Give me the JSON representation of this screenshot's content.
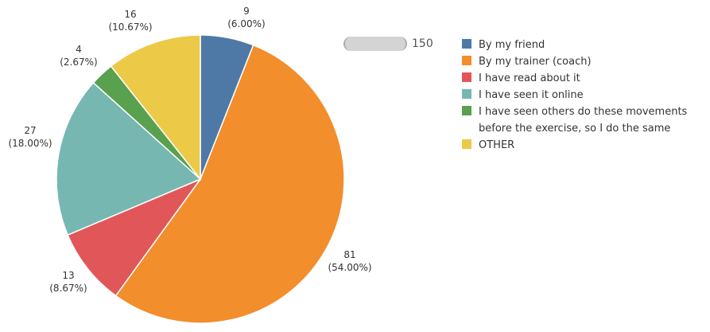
{
  "chart_data": {
    "type": "pie",
    "title": "",
    "categories": [
      "By my friend",
      "By my trainer (coach)",
      "I have read about it",
      "I have seen it online",
      "I have seen others do these movements before the exercise, so I do the same",
      "OTHER"
    ],
    "values": [
      9,
      81,
      13,
      27,
      4,
      16
    ],
    "percent_labels": [
      "(6.00%)",
      "(54.00%)",
      "(8.67%)",
      "(18.00%)",
      "(2.67%)",
      "(10.67%)"
    ],
    "colors": [
      "#4e79a7",
      "#f28e2b",
      "#e15759",
      "#76b7b2",
      "#59a14f",
      "#edc948"
    ],
    "total": 150,
    "legend_position": "right"
  },
  "size_legend": {
    "value": "150"
  },
  "legend": [
    {
      "label": "By my friend",
      "color": "#4e79a7"
    },
    {
      "label": "By my trainer (coach)",
      "color": "#f28e2b"
    },
    {
      "label": "I have read about it",
      "color": "#e15759"
    },
    {
      "label": "I have seen it online",
      "color": "#76b7b2"
    },
    {
      "label": "I have seen others do these movements before the exercise, so I do the same",
      "color": "#59a14f"
    },
    {
      "label": "OTHER",
      "color": "#edc948"
    }
  ]
}
